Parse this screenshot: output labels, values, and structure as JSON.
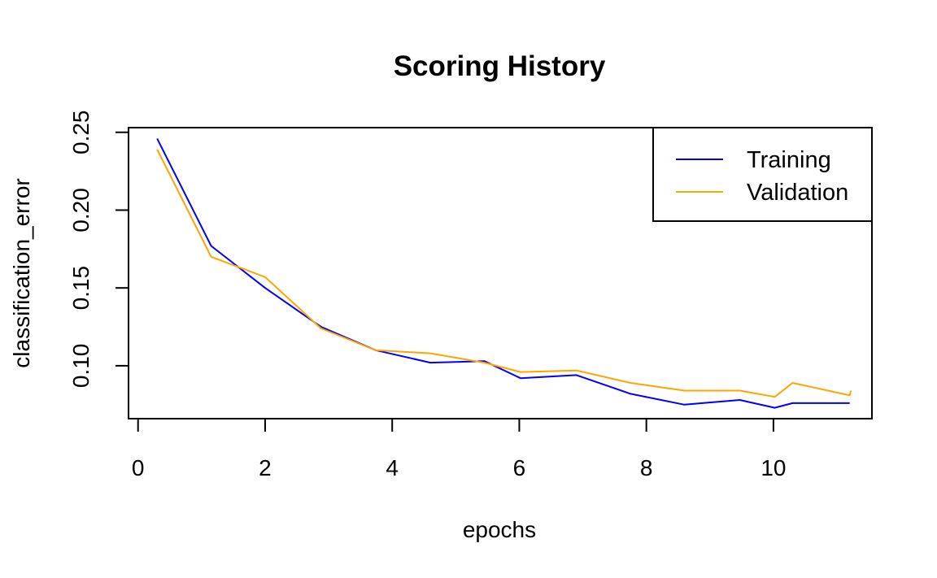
{
  "chart_data": {
    "type": "line",
    "title": "Scoring History",
    "xlabel": "epochs",
    "ylabel": "classification_error",
    "xlim": [
      -0.15,
      11.55
    ],
    "ylim": [
      0.066,
      0.253
    ],
    "xticks": [
      0,
      2,
      4,
      6,
      8,
      10
    ],
    "xtick_labels": [
      "0",
      "2",
      "4",
      "6",
      "8",
      "10"
    ],
    "yticks": [
      0.1,
      0.15,
      0.2,
      0.25
    ],
    "ytick_labels": [
      "0.10",
      "0.15",
      "0.20",
      "0.25"
    ],
    "legend_position": "top-right",
    "series": [
      {
        "name": "Training",
        "color": "#0000ff",
        "x": [
          0.3,
          1.15,
          2.0,
          2.88,
          3.74,
          4.6,
          5.45,
          6.02,
          6.9,
          7.75,
          8.6,
          9.47,
          10.02,
          10.3,
          11.2
        ],
        "y": [
          0.246,
          0.177,
          0.15,
          0.125,
          0.11,
          0.102,
          0.103,
          0.092,
          0.094,
          0.082,
          0.075,
          0.078,
          0.073,
          0.076,
          0.076
        ]
      },
      {
        "name": "Validation",
        "color": "#ffa500",
        "x": [
          0.3,
          1.15,
          2.0,
          2.88,
          3.74,
          4.6,
          5.45,
          6.02,
          6.9,
          7.75,
          8.6,
          9.47,
          10.02,
          10.3,
          11.2,
          11.22
        ],
        "y": [
          0.239,
          0.17,
          0.157,
          0.124,
          0.11,
          0.108,
          0.102,
          0.096,
          0.097,
          0.089,
          0.084,
          0.084,
          0.08,
          0.089,
          0.081,
          0.084
        ]
      }
    ]
  }
}
